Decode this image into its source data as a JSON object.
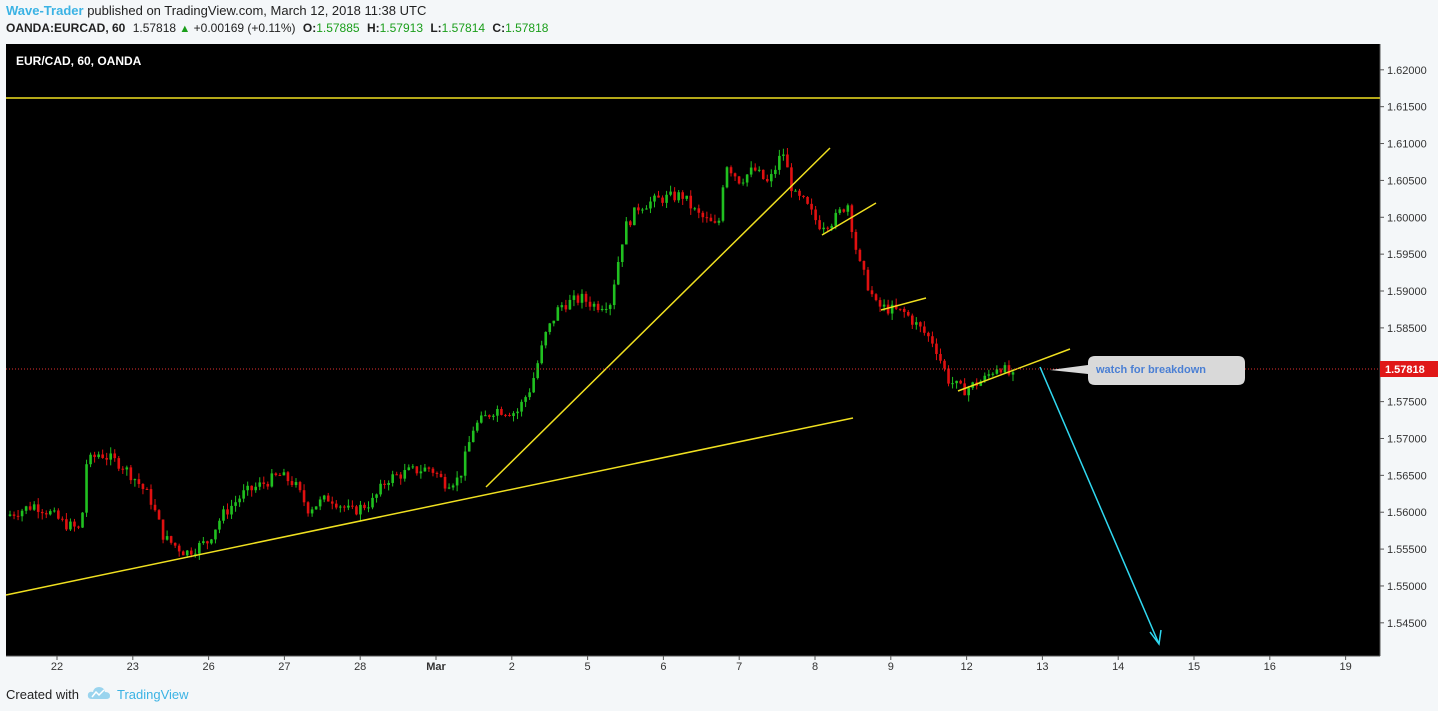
{
  "header": {
    "author": "Wave-Trader",
    "published_text": "published on TradingView.com, March 12, 2018 11:38 UTC",
    "symbol": "OANDA:EURCAD, 60",
    "last": "1.57818",
    "change": "+0.00169 (+0.11%)",
    "o_label": "O:",
    "o": "1.57885",
    "h_label": "H:",
    "h": "1.57913",
    "l_label": "L:",
    "l": "1.57814",
    "c_label": "C:",
    "c": "1.57818"
  },
  "chart_title": "EUR/CAD, 60, OANDA",
  "annotation": "watch for breakdown",
  "price_badge": "1.57818",
  "footer": {
    "created_with": "Created with",
    "brand": "TradingView"
  },
  "colors": {
    "background": "#000000",
    "up": "#20c020",
    "down": "#e01010",
    "trendline": "#f0e020",
    "arrow": "#30d8f0",
    "price_line": "#e03030"
  },
  "chart_data": {
    "type": "candlestick",
    "title": "EUR/CAD, 60, OANDA",
    "y_range": [
      1.5405,
      1.6235
    ],
    "y_ticks": [
      "1.54500",
      "1.55000",
      "1.55500",
      "1.56000",
      "1.56500",
      "1.57000",
      "1.57500",
      "1.58000",
      "1.58500",
      "1.59000",
      "1.59500",
      "1.60000",
      "1.60500",
      "1.61000",
      "1.61500",
      "1.62000"
    ],
    "x_ticks": [
      "22",
      "23",
      "26",
      "27",
      "28",
      "Mar",
      "2",
      "5",
      "6",
      "7",
      "8",
      "9",
      "12",
      "13",
      "14",
      "15",
      "16",
      "19"
    ],
    "current_price": 1.57818,
    "path_points": [
      [
        0.0,
        1.5595
      ],
      [
        0.4,
        1.561
      ],
      [
        0.6,
        1.56
      ],
      [
        0.8,
        1.5585
      ],
      [
        1.05,
        1.5575
      ],
      [
        1.1,
        1.5665
      ],
      [
        1.3,
        1.568
      ],
      [
        1.6,
        1.5665
      ],
      [
        1.8,
        1.5645
      ],
      [
        2.0,
        1.562
      ],
      [
        2.2,
        1.5565
      ],
      [
        2.5,
        1.5545
      ],
      [
        2.8,
        1.556
      ],
      [
        3.0,
        1.5595
      ],
      [
        3.3,
        1.5625
      ],
      [
        3.6,
        1.564
      ],
      [
        3.8,
        1.565
      ],
      [
        4.0,
        1.564
      ],
      [
        4.2,
        1.5605
      ],
      [
        4.5,
        1.562
      ],
      [
        4.8,
        1.56
      ],
      [
        5.1,
        1.5615
      ],
      [
        5.3,
        1.5645
      ],
      [
        5.6,
        1.5655
      ],
      [
        5.9,
        1.566
      ],
      [
        6.1,
        1.564
      ],
      [
        6.3,
        1.5645
      ],
      [
        6.5,
        1.5715
      ],
      [
        6.8,
        1.574
      ],
      [
        7.1,
        1.5735
      ],
      [
        7.3,
        1.577
      ],
      [
        7.5,
        1.584
      ],
      [
        7.7,
        1.588
      ],
      [
        8.0,
        1.589
      ],
      [
        8.2,
        1.588
      ],
      [
        8.4,
        1.5885
      ],
      [
        8.6,
        1.5985
      ],
      [
        8.8,
        1.6015
      ],
      [
        9.1,
        1.6025
      ],
      [
        9.4,
        1.603
      ],
      [
        9.6,
        1.6005
      ],
      [
        9.9,
        1.5985
      ],
      [
        10.0,
        1.6075
      ],
      [
        10.2,
        1.605
      ],
      [
        10.4,
        1.6065
      ],
      [
        10.6,
        1.6045
      ],
      [
        10.8,
        1.609
      ],
      [
        10.95,
        1.603
      ],
      [
        11.1,
        1.602
      ],
      [
        11.3,
        1.599
      ],
      [
        11.5,
        1.5995
      ],
      [
        11.7,
        1.602
      ],
      [
        11.85,
        1.594
      ],
      [
        12.1,
        1.588
      ],
      [
        12.3,
        1.5875
      ],
      [
        12.5,
        1.587
      ],
      [
        12.7,
        1.585
      ],
      [
        12.9,
        1.583
      ],
      [
        13.1,
        1.578
      ],
      [
        13.3,
        1.5765
      ],
      [
        13.6,
        1.578
      ],
      [
        13.8,
        1.58
      ],
      [
        14.0,
        1.5782
      ]
    ]
  }
}
